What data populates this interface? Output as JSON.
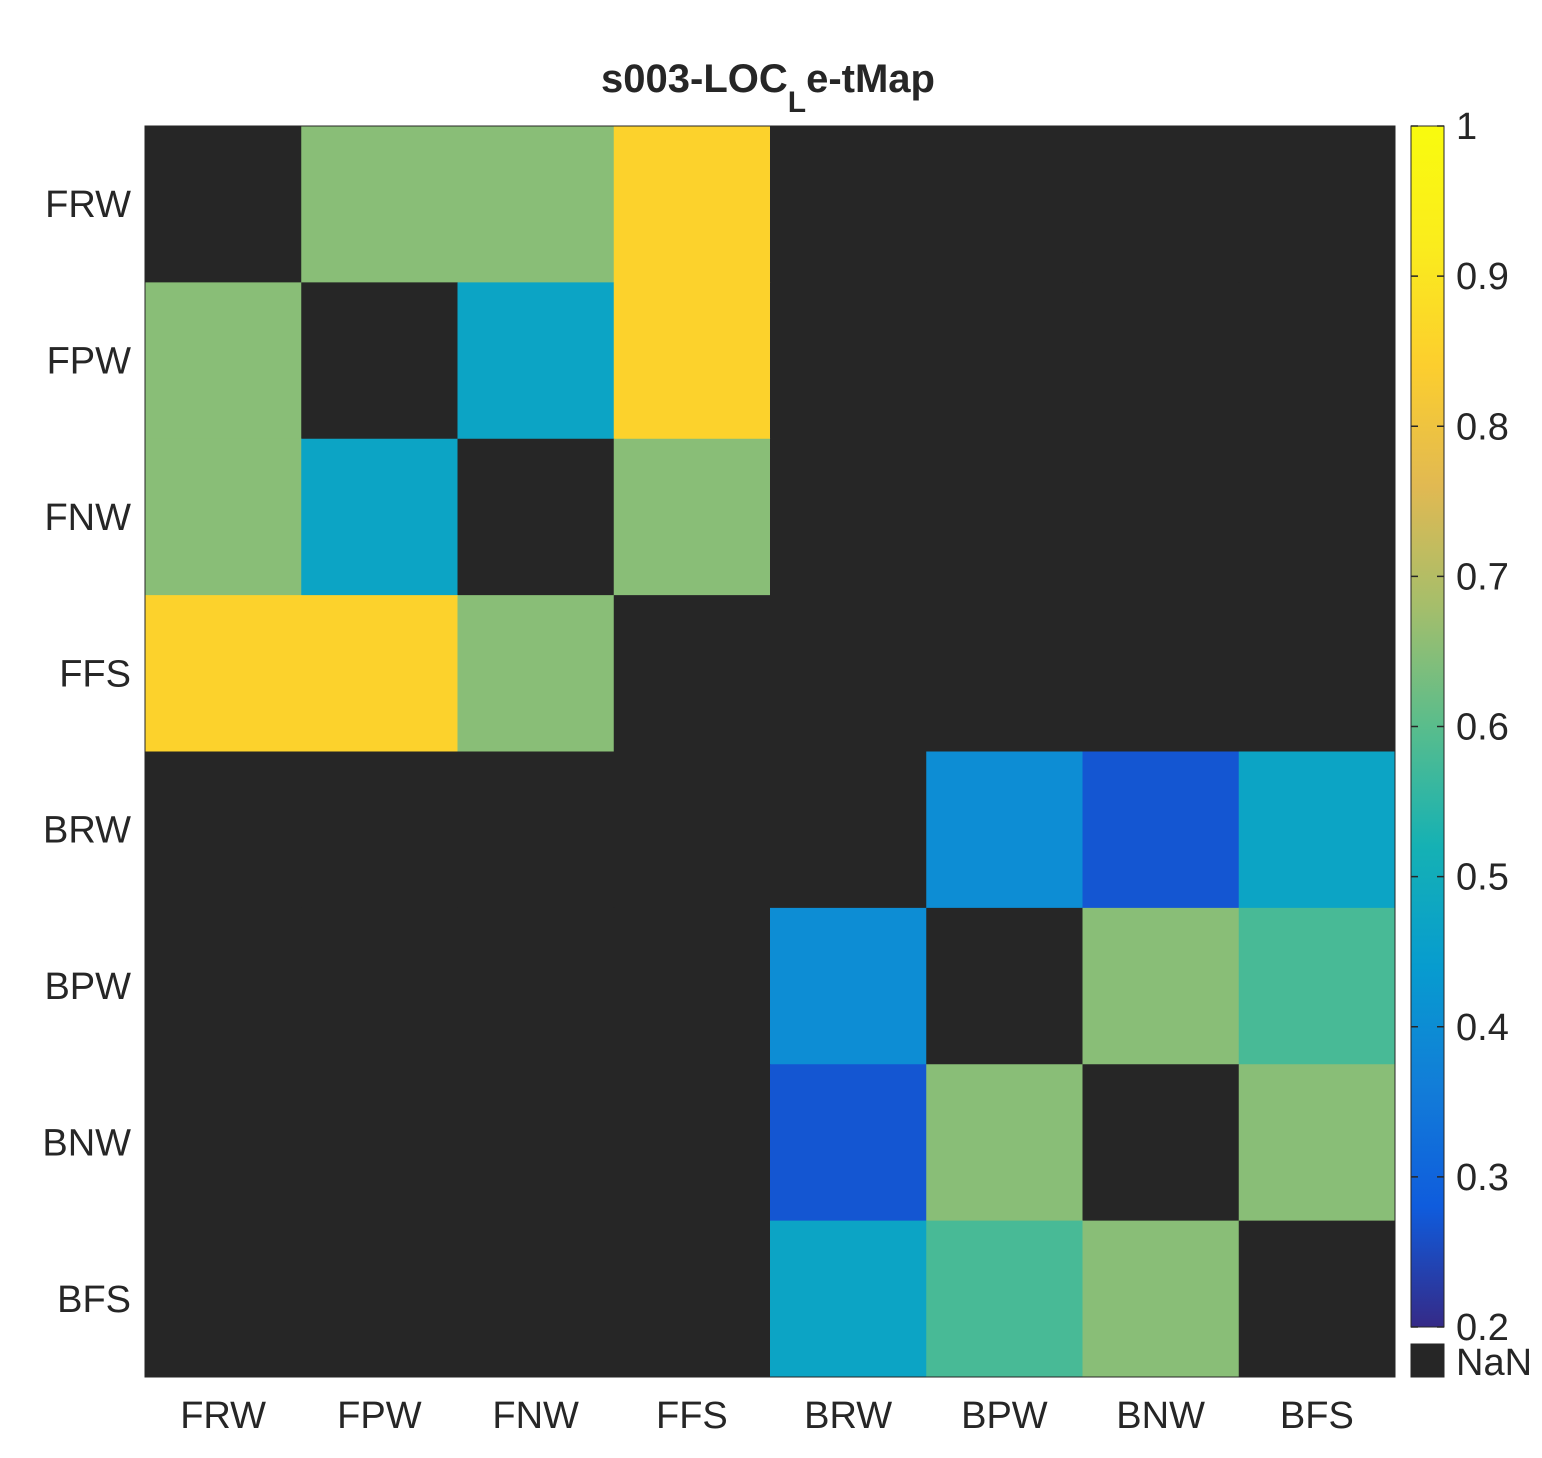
{
  "chart_data": {
    "type": "heatmap",
    "title": {
      "main": "s003-LOC",
      "subscript": "L",
      "suffix": "e-tMap"
    },
    "x_categories": [
      "FRW",
      "FPW",
      "FNW",
      "FFS",
      "BRW",
      "BPW",
      "BNW",
      "BFS"
    ],
    "y_categories": [
      "FRW",
      "FPW",
      "FNW",
      "FFS",
      "BRW",
      "BPW",
      "BNW",
      "BFS"
    ],
    "values": [
      [
        null,
        0.65,
        0.65,
        0.85,
        null,
        null,
        null,
        null
      ],
      [
        0.65,
        null,
        0.47,
        0.85,
        null,
        null,
        null,
        null
      ],
      [
        0.65,
        0.47,
        null,
        0.65,
        null,
        null,
        null,
        null
      ],
      [
        0.85,
        0.85,
        0.65,
        null,
        null,
        null,
        null,
        null
      ],
      [
        null,
        null,
        null,
        null,
        null,
        0.4,
        0.27,
        0.47
      ],
      [
        null,
        null,
        null,
        null,
        0.4,
        null,
        0.65,
        0.58
      ],
      [
        null,
        null,
        null,
        null,
        0.27,
        0.65,
        null,
        0.65
      ],
      [
        null,
        null,
        null,
        null,
        0.47,
        0.58,
        0.65,
        null
      ]
    ],
    "colorbar": {
      "range": [
        0.2,
        1
      ],
      "ticks": [
        0.2,
        0.3,
        0.4,
        0.5,
        0.6,
        0.7,
        0.8,
        0.9,
        1
      ],
      "tick_labels": [
        "0.2",
        "0.3",
        "0.4",
        "0.5",
        "0.6",
        "0.7",
        "0.8",
        "0.9",
        "1"
      ],
      "colormap": "parula",
      "nan_label": "NaN",
      "nan_color": "#262626"
    },
    "grid": false
  }
}
